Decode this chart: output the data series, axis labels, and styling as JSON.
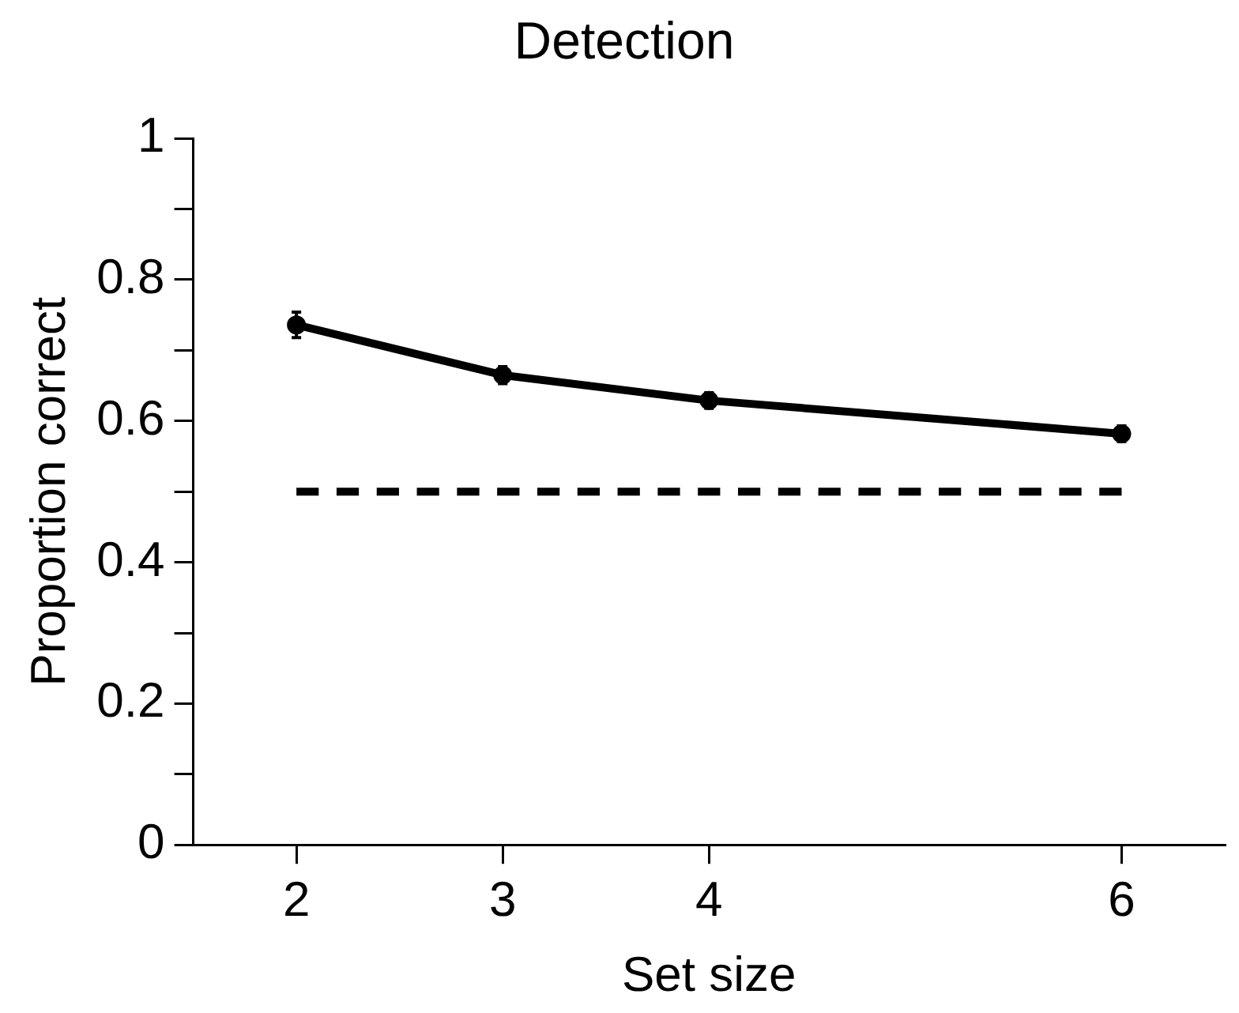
{
  "chart_data": {
    "type": "line",
    "title": "Detection",
    "xlabel": "Set size",
    "ylabel": "Proportion correct",
    "x": [
      2,
      3,
      4,
      6
    ],
    "series": [
      {
        "color": "#000000",
        "values": [
          0.736,
          0.665,
          0.629,
          0.582
        ],
        "errors": [
          0.018,
          0.012,
          0.011,
          0.011
        ],
        "marker": "circle",
        "line_style": "solid"
      },
      {
        "color": "#000000",
        "x": [
          2,
          6
        ],
        "values": [
          0.5,
          0.5
        ],
        "marker": "none",
        "line_style": "dashed"
      }
    ],
    "xlim": [
      1.5,
      6.5
    ],
    "xticks": [
      2,
      3,
      4,
      6
    ],
    "ylim": [
      0,
      1
    ],
    "yticks": [
      0,
      {
        "value": 0.1,
        "label": null
      },
      0.2,
      {
        "value": 0.3,
        "label": null
      },
      0.4,
      {
        "value": 0.5,
        "label": null
      },
      0.6,
      {
        "value": 0.7,
        "label": null
      },
      0.8,
      {
        "value": 0.9,
        "label": null
      },
      1
    ],
    "grid": false,
    "legend": false
  }
}
